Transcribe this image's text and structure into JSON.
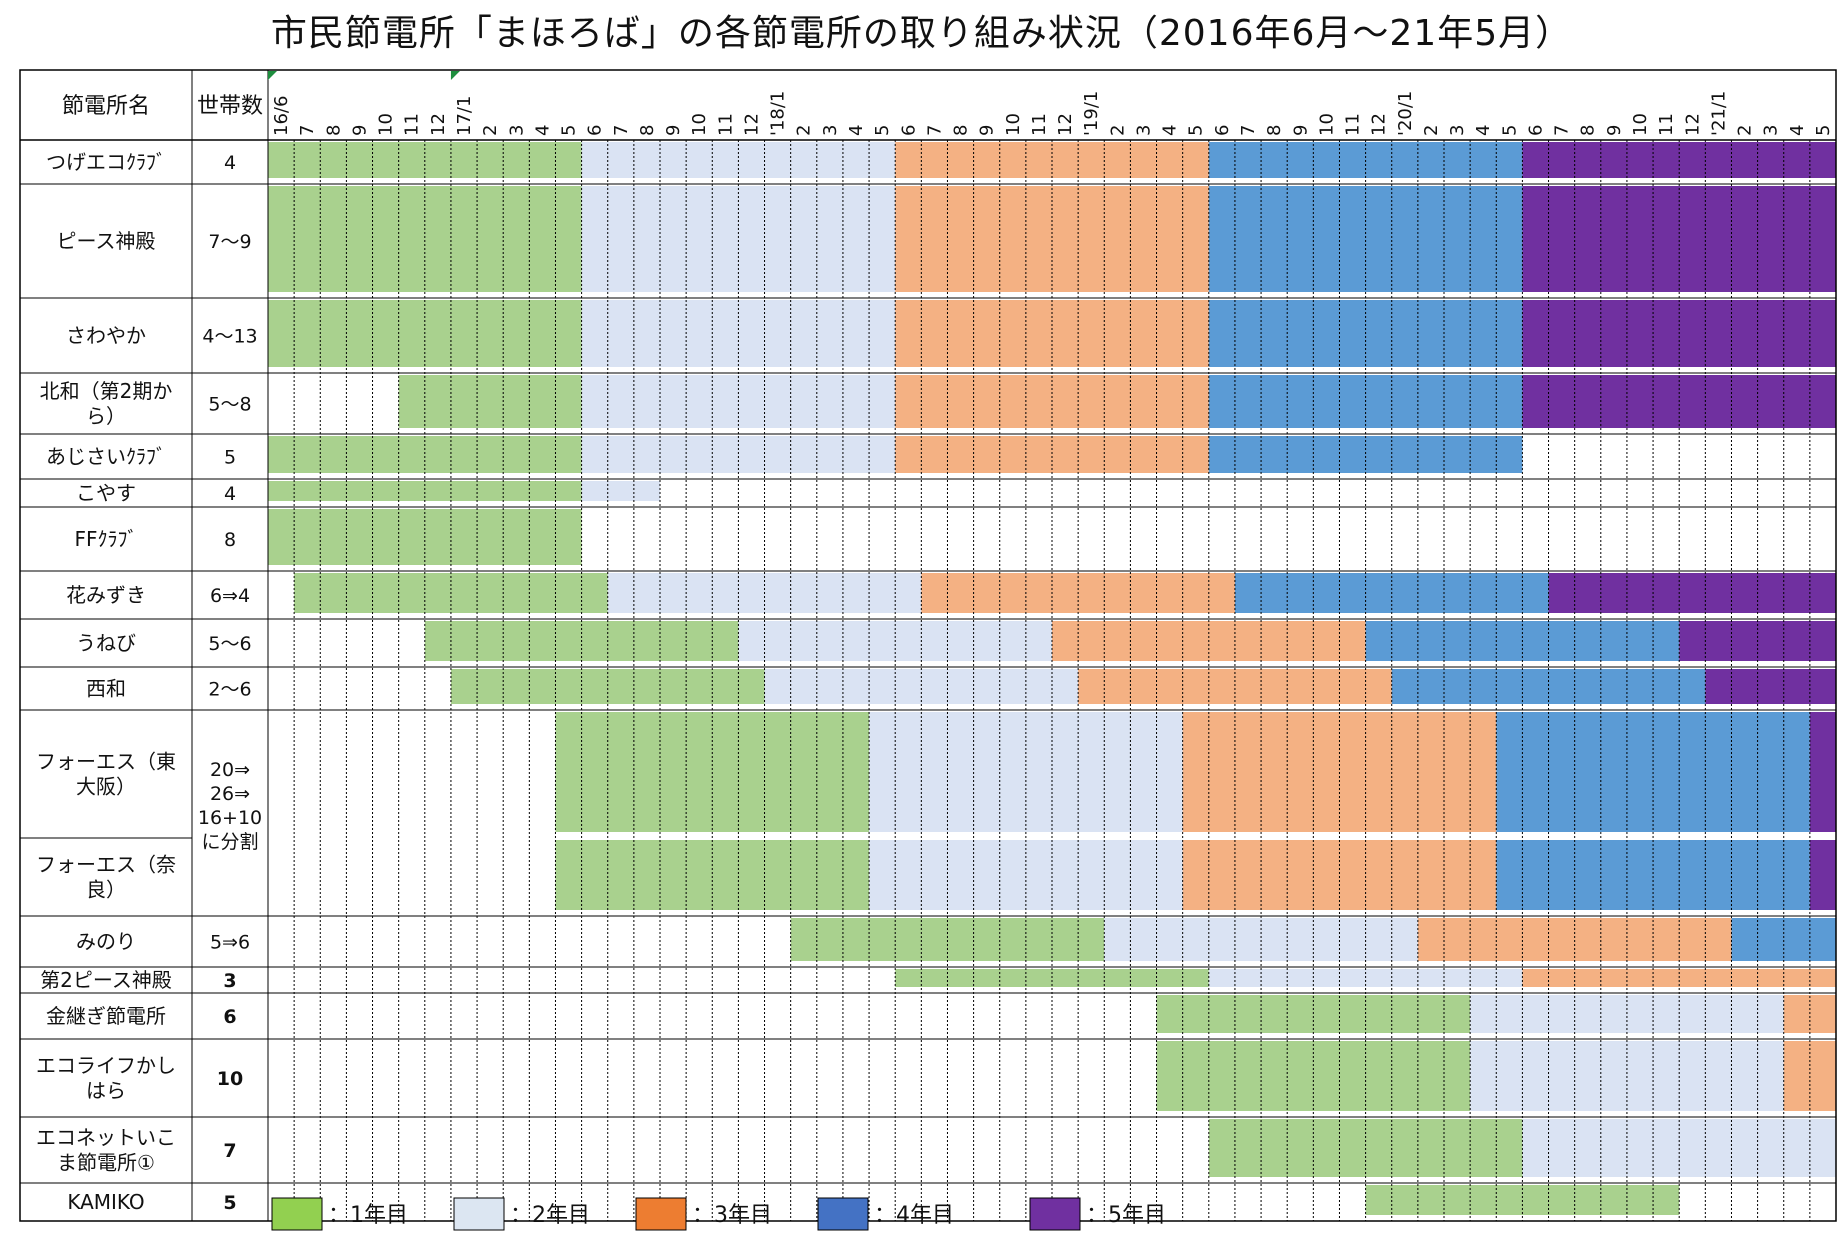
{
  "chart_data": {
    "type": "gantt",
    "title": "市民節電所「まほろば」の各節電所の取り組み状況（2016年6月～21年5月）",
    "header": {
      "name_col": "節電所名",
      "household_col": "世帯数"
    },
    "timeline": {
      "start": "2016-06",
      "end": "2021-05",
      "months": 60
    },
    "month_labels": [
      "16/6",
      "7",
      "8",
      "9",
      "10",
      "11",
      "12",
      "17/1",
      "2",
      "3",
      "4",
      "5",
      "6",
      "7",
      "8",
      "9",
      "10",
      "11",
      "12",
      "'18/1",
      "2",
      "3",
      "4",
      "5",
      "6",
      "7",
      "8",
      "9",
      "10",
      "11",
      "12",
      "'19/1",
      "2",
      "3",
      "4",
      "5",
      "6",
      "7",
      "8",
      "9",
      "10",
      "11",
      "12",
      "'20/1",
      "2",
      "3",
      "4",
      "5",
      "6",
      "7",
      "8",
      "9",
      "10",
      "11",
      "12",
      "'21/1",
      "2",
      "3",
      "4",
      "5"
    ],
    "legend": [
      {
        "label": "：1年目",
        "color": "#92d050"
      },
      {
        "label": "：2年目",
        "color": "#dce6f2"
      },
      {
        "label": "：3年目",
        "color": "#ed7d31"
      },
      {
        "label": "：4年目",
        "color": "#4472c4"
      },
      {
        "label": "：5年目",
        "color": "#7030a0"
      }
    ],
    "fill_colors": [
      "#a9d18e",
      "#dae3f3",
      "#f4b183",
      "#5b9bd5",
      "#7030a0"
    ],
    "rows": [
      {
        "name": "つげエコｸﾗﾌﾞ",
        "households": "4",
        "series": [
          {
            "segments": [
              {
                "from": "2016-06",
                "to": "2017-05",
                "year": 1
              },
              {
                "from": "2017-06",
                "to": "2018-05",
                "year": 2
              },
              {
                "from": "2018-06",
                "to": "2019-05",
                "year": 3
              },
              {
                "from": "2019-06",
                "to": "2020-05",
                "year": 4
              },
              {
                "from": "2020-06",
                "to": "2021-05",
                "year": 5
              }
            ]
          }
        ]
      },
      {
        "name": "ピース神殿",
        "households": "7～9",
        "series": [
          {
            "segments": [
              {
                "from": "2016-06",
                "to": "2017-05",
                "year": 1
              },
              {
                "from": "2017-06",
                "to": "2018-05",
                "year": 2
              },
              {
                "from": "2018-06",
                "to": "2019-05",
                "year": 3
              },
              {
                "from": "2019-06",
                "to": "2020-05",
                "year": 4
              },
              {
                "from": "2020-06",
                "to": "2021-05",
                "year": 5
              }
            ]
          }
        ]
      },
      {
        "name": "さわやか",
        "households": "4～13",
        "series": [
          {
            "segments": [
              {
                "from": "2016-06",
                "to": "2017-05",
                "year": 1
              },
              {
                "from": "2017-06",
                "to": "2018-05",
                "year": 2
              },
              {
                "from": "2018-06",
                "to": "2019-05",
                "year": 3
              },
              {
                "from": "2019-06",
                "to": "2020-05",
                "year": 4
              },
              {
                "from": "2020-06",
                "to": "2021-05",
                "year": 5
              }
            ]
          }
        ]
      },
      {
        "name": "北和（第2期から）",
        "households": "5～8",
        "series": [
          {
            "segments": [
              {
                "from": "2016-11",
                "to": "2017-05",
                "year": 1
              },
              {
                "from": "2017-06",
                "to": "2018-05",
                "year": 2
              },
              {
                "from": "2018-06",
                "to": "2019-05",
                "year": 3
              },
              {
                "from": "2019-06",
                "to": "2020-05",
                "year": 4
              },
              {
                "from": "2020-06",
                "to": "2021-05",
                "year": 5
              }
            ]
          }
        ]
      },
      {
        "name": "あじさいｸﾗﾌﾞ",
        "households": "5",
        "series": [
          {
            "segments": [
              {
                "from": "2016-06",
                "to": "2017-05",
                "year": 1
              },
              {
                "from": "2017-06",
                "to": "2018-05",
                "year": 2
              },
              {
                "from": "2018-06",
                "to": "2019-05",
                "year": 3
              },
              {
                "from": "2019-06",
                "to": "2020-05",
                "year": 4
              }
            ]
          }
        ]
      },
      {
        "name": "こやす",
        "households": "4",
        "series": [
          {
            "segments": [
              {
                "from": "2016-06",
                "to": "2017-05",
                "year": 1
              },
              {
                "from": "2017-06",
                "to": "2017-08",
                "year": 2
              }
            ]
          }
        ]
      },
      {
        "name": "FFｸﾗﾌﾞ",
        "households": "8",
        "series": [
          {
            "segments": [
              {
                "from": "2016-06",
                "to": "2017-05",
                "year": 1
              }
            ]
          }
        ]
      },
      {
        "name": "花みずき",
        "households": "6⇒4",
        "series": [
          {
            "segments": [
              {
                "from": "2016-07",
                "to": "2017-06",
                "year": 1
              },
              {
                "from": "2017-07",
                "to": "2018-06",
                "year": 2
              },
              {
                "from": "2018-07",
                "to": "2019-06",
                "year": 3
              },
              {
                "from": "2019-07",
                "to": "2020-06",
                "year": 4
              },
              {
                "from": "2020-07",
                "to": "2021-05",
                "year": 5
              }
            ]
          }
        ]
      },
      {
        "name": "うねび",
        "households": "5～6",
        "series": [
          {
            "segments": [
              {
                "from": "2016-12",
                "to": "2017-11",
                "year": 1
              },
              {
                "from": "2017-12",
                "to": "2018-11",
                "year": 2
              },
              {
                "from": "2018-12",
                "to": "2019-11",
                "year": 3
              },
              {
                "from": "2019-12",
                "to": "2020-11",
                "year": 4
              },
              {
                "from": "2020-12",
                "to": "2021-05",
                "year": 5
              }
            ]
          }
        ]
      },
      {
        "name": "西和",
        "households": "2～6",
        "series": [
          {
            "segments": [
              {
                "from": "2017-01",
                "to": "2017-12",
                "year": 1
              },
              {
                "from": "2018-01",
                "to": "2018-12",
                "year": 2
              },
              {
                "from": "2019-01",
                "to": "2019-12",
                "year": 3
              },
              {
                "from": "2020-01",
                "to": "2020-12",
                "year": 4
              },
              {
                "from": "2021-01",
                "to": "2021-05",
                "year": 5
              }
            ]
          }
        ]
      },
      {
        "name": "フォーエス（東大阪）",
        "households": "20⇒26⇒16+10に分割",
        "series": [
          {
            "segments": [
              {
                "from": "2017-05",
                "to": "2018-04",
                "year": 1
              },
              {
                "from": "2018-05",
                "to": "2019-04",
                "year": 2
              },
              {
                "from": "2019-05",
                "to": "2020-04",
                "year": 3
              },
              {
                "from": "2020-05",
                "to": "2021-04",
                "year": 4
              },
              {
                "from": "2021-05",
                "to": "2021-05",
                "year": 5
              }
            ]
          }
        ]
      },
      {
        "name": "フォーエス（奈良）",
        "households": "",
        "series": [
          {
            "segments": [
              {
                "from": "2017-05",
                "to": "2018-04",
                "year": 1
              },
              {
                "from": "2018-05",
                "to": "2019-04",
                "year": 2
              },
              {
                "from": "2019-05",
                "to": "2020-04",
                "year": 3
              },
              {
                "from": "2020-05",
                "to": "2021-04",
                "year": 4
              },
              {
                "from": "2021-05",
                "to": "2021-05",
                "year": 5
              }
            ]
          }
        ]
      },
      {
        "name": "みのり",
        "households": "5⇒6",
        "series": [
          {
            "segments": [
              {
                "from": "2018-02",
                "to": "2019-01",
                "year": 1
              },
              {
                "from": "2019-02",
                "to": "2020-01",
                "year": 2
              },
              {
                "from": "2020-02",
                "to": "2021-01",
                "year": 3
              },
              {
                "from": "2021-02",
                "to": "2021-05",
                "year": 4
              }
            ]
          }
        ]
      },
      {
        "name": "第2ピース神殿",
        "households": "3",
        "series": [
          {
            "segments": [
              {
                "from": "2018-06",
                "to": "2019-05",
                "year": 1
              },
              {
                "from": "2019-06",
                "to": "2020-05",
                "year": 2
              },
              {
                "from": "2020-06",
                "to": "2021-05",
                "year": 3
              }
            ]
          }
        ]
      },
      {
        "name": "金継ぎ節電所",
        "households": "6",
        "series": [
          {
            "segments": [
              {
                "from": "2019-04",
                "to": "2020-03",
                "year": 1
              },
              {
                "from": "2020-04",
                "to": "2021-03",
                "year": 2
              },
              {
                "from": "2021-04",
                "to": "2021-05",
                "year": 3
              }
            ]
          }
        ]
      },
      {
        "name": "エコライフかしはら",
        "households": "10",
        "series": [
          {
            "segments": [
              {
                "from": "2019-04",
                "to": "2020-03",
                "year": 1
              },
              {
                "from": "2020-04",
                "to": "2021-03",
                "year": 2
              },
              {
                "from": "2021-04",
                "to": "2021-05",
                "year": 3
              }
            ]
          }
        ]
      },
      {
        "name": "エコネットいこま節電所①",
        "households": "7",
        "series": [
          {
            "segments": [
              {
                "from": "2019-06",
                "to": "2020-05",
                "year": 1
              },
              {
                "from": "2020-06",
                "to": "2021-05",
                "year": 2
              }
            ]
          }
        ]
      },
      {
        "name": "KAMIKO",
        "households": "5",
        "series": [
          {
            "segments": [
              {
                "from": "2019-12",
                "to": "2020-11",
                "year": 1
              }
            ]
          }
        ]
      }
    ]
  }
}
